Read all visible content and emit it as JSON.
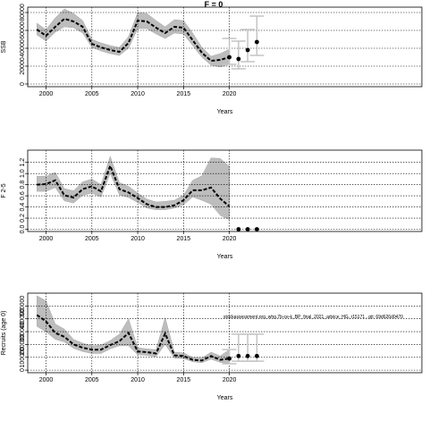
{
  "figure_title": "F = 0",
  "annotation": "stockassessment.org, whg.7b-ce-k_BP_final_2021_advice_HG, r15171 , git: 69d626d0470",
  "chart_data": [
    {
      "type": "line",
      "ylabel": "SSB",
      "xlabel": "Years",
      "xlim": [
        1998,
        2041
      ],
      "ylim": [
        -3000,
        86000
      ],
      "xticks": [
        2000,
        2005,
        2010,
        2015,
        2020
      ],
      "yticks": [
        0,
        20000,
        40000,
        60000,
        80000
      ],
      "ytick_labels": [
        "0",
        "20000",
        "40000",
        "60000",
        "80000"
      ],
      "grid": true,
      "x": [
        1999,
        2000,
        2001,
        2002,
        2003,
        2004,
        2005,
        2006,
        2007,
        2008,
        2009,
        2010,
        2011,
        2012,
        2013,
        2014,
        2015,
        2016,
        2017,
        2018,
        2019,
        2020
      ],
      "estimate": [
        61000,
        54000,
        64000,
        73000,
        70000,
        64000,
        45000,
        41000,
        38000,
        36000,
        46000,
        71000,
        70000,
        63000,
        57000,
        64000,
        63000,
        49000,
        35000,
        26000,
        27000,
        30000
      ],
      "lower": [
        55000,
        48000,
        58000,
        64000,
        63000,
        57000,
        41000,
        37000,
        34000,
        32000,
        40000,
        62000,
        62000,
        56000,
        51000,
        57000,
        56000,
        43000,
        30000,
        21000,
        19000,
        22000
      ],
      "upper": [
        68000,
        61000,
        74000,
        84000,
        79000,
        71000,
        50000,
        46000,
        43000,
        41000,
        53000,
        80000,
        79000,
        71000,
        64000,
        72000,
        71000,
        57000,
        41000,
        31000,
        34000,
        39000
      ],
      "forecast": {
        "x": [
          2020,
          2021,
          2022,
          2023
        ],
        "estimate": [
          30000,
          28000,
          38000,
          47000
        ],
        "lower": [
          22000,
          17000,
          25000,
          32000
        ],
        "upper": [
          51000,
          48000,
          61000,
          76000
        ]
      }
    },
    {
      "type": "line",
      "ylabel": "F 2-5",
      "xlabel": "Years",
      "xlim": [
        1998,
        2041
      ],
      "ylim": [
        -0.04,
        1.42
      ],
      "xticks": [
        2000,
        2005,
        2010,
        2015,
        2020
      ],
      "yticks": [
        0.0,
        0.2,
        0.4,
        0.6,
        0.8,
        1.0,
        1.2
      ],
      "ytick_labels": [
        "0.0",
        "0.2",
        "0.4",
        "0.6",
        "0.8",
        "1.0",
        "1.2"
      ],
      "grid": true,
      "x": [
        1999,
        2000,
        2001,
        2002,
        2003,
        2004,
        2005,
        2006,
        2007,
        2008,
        2009,
        2010,
        2011,
        2012,
        2013,
        2014,
        2015,
        2016,
        2017,
        2018,
        2019,
        2020
      ],
      "estimate": [
        0.8,
        0.81,
        0.88,
        0.61,
        0.57,
        0.72,
        0.77,
        0.68,
        1.14,
        0.72,
        0.66,
        0.56,
        0.45,
        0.4,
        0.4,
        0.43,
        0.52,
        0.7,
        0.7,
        0.75,
        0.55,
        0.41
      ],
      "lower": [
        0.68,
        0.68,
        0.75,
        0.51,
        0.47,
        0.61,
        0.65,
        0.58,
        1.0,
        0.62,
        0.57,
        0.48,
        0.38,
        0.35,
        0.35,
        0.38,
        0.44,
        0.58,
        0.52,
        0.45,
        0.25,
        0.17
      ],
      "upper": [
        0.95,
        0.95,
        1.02,
        0.73,
        0.69,
        0.85,
        0.9,
        0.8,
        1.31,
        0.84,
        0.77,
        0.65,
        0.54,
        0.49,
        0.5,
        0.52,
        0.61,
        0.88,
        0.96,
        1.28,
        1.27,
        1.13
      ],
      "forecast": {
        "x": [
          2021,
          2022,
          2023
        ],
        "estimate": [
          0.0,
          0.0,
          0.0
        ]
      }
    },
    {
      "type": "line",
      "ylabel": "Recruits (age 0)",
      "xlabel": "Years",
      "xlim": [
        1998,
        2041
      ],
      "ylim": [
        -20000,
        600000
      ],
      "xticks": [
        2000,
        2005,
        2010,
        2015,
        2020
      ],
      "yticks": [
        0,
        100000,
        200000,
        300000,
        400000,
        500000
      ],
      "ytick_labels": [
        "0",
        "100000",
        "200000",
        "300000",
        "400000",
        "500000"
      ],
      "grid": true,
      "x": [
        1999,
        2000,
        2001,
        2002,
        2003,
        2004,
        2005,
        2006,
        2007,
        2008,
        2009,
        2010,
        2011,
        2012,
        2013,
        2014,
        2015,
        2016,
        2017,
        2018,
        2019,
        2020
      ],
      "estimate": [
        430000,
        380000,
        290000,
        260000,
        200000,
        175000,
        160000,
        160000,
        195000,
        225000,
        290000,
        145000,
        140000,
        130000,
        285000,
        115000,
        110000,
        80000,
        75000,
        110000,
        80000,
        90000
      ],
      "lower": [
        340000,
        300000,
        240000,
        220000,
        170000,
        145000,
        130000,
        130000,
        165000,
        190000,
        190000,
        120000,
        115000,
        105000,
        200000,
        95000,
        90000,
        65000,
        58000,
        85000,
        60000,
        50000
      ],
      "upper": [
        580000,
        540000,
        360000,
        320000,
        240000,
        210000,
        190000,
        195000,
        230000,
        280000,
        400000,
        175000,
        165000,
        160000,
        410000,
        140000,
        135000,
        100000,
        95000,
        140000,
        110000,
        160000
      ],
      "forecast": {
        "x": [
          2020,
          2021,
          2022,
          2023
        ],
        "estimate": [
          90000,
          110000,
          110000,
          110000
        ],
        "lower": [
          50000,
          70000,
          70000,
          70000
        ],
        "upper": [
          160000,
          280000,
          280000,
          280000
        ]
      }
    }
  ]
}
